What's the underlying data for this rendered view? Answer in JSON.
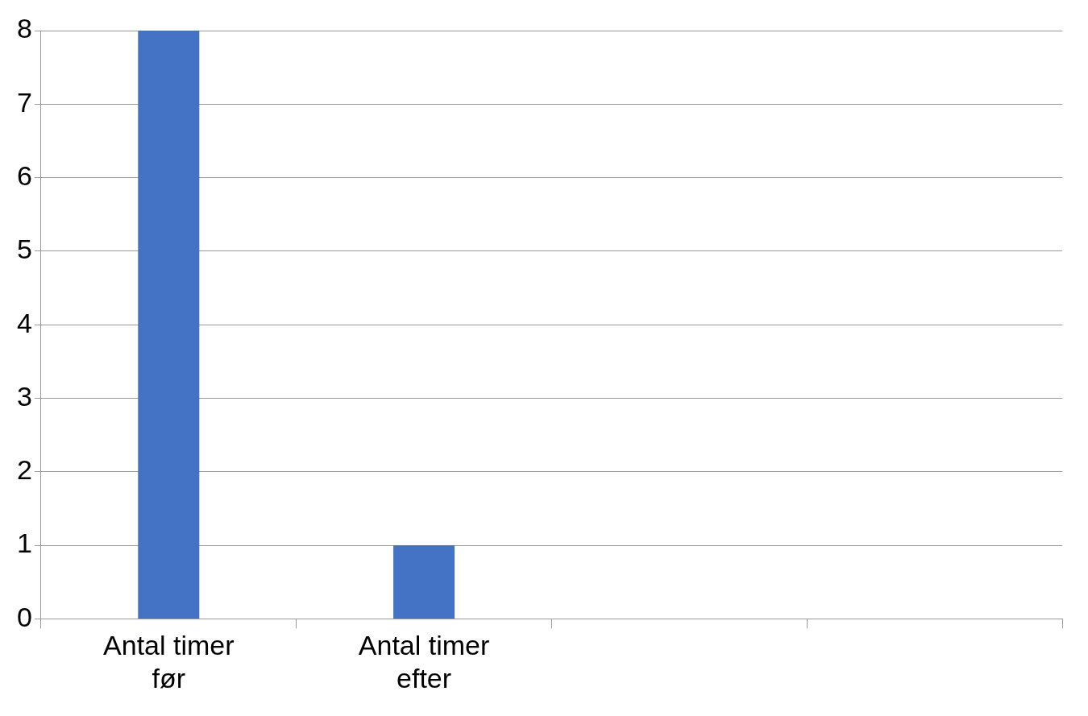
{
  "chart_data": {
    "type": "bar",
    "categories": [
      "Antal timer før",
      "Antal timer efter",
      null,
      null
    ],
    "values": [
      8,
      1,
      null,
      null
    ],
    "color": "#4472c4",
    "ylim": [
      0,
      8
    ],
    "yticks": [
      0,
      1,
      2,
      3,
      4,
      5,
      6,
      7,
      8
    ],
    "grid": "y",
    "legend": false
  }
}
